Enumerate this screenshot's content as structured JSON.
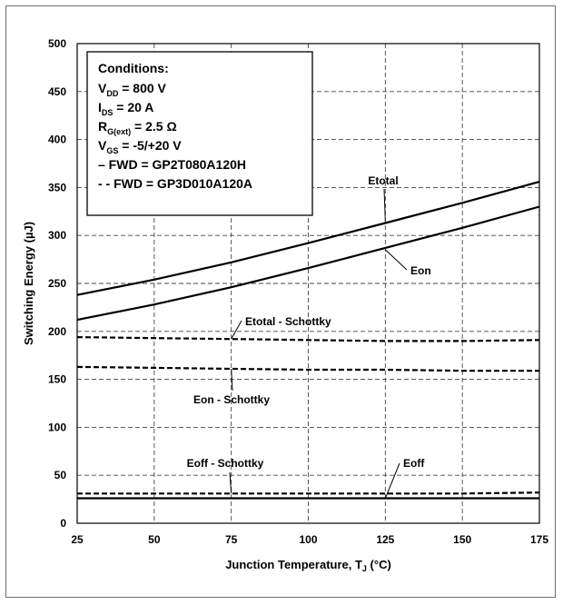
{
  "chart_data": {
    "type": "line",
    "xlabel": "Junction Temperature, T",
    "xlabel_sub": "J",
    "xlabel_unit": " (°C)",
    "ylabel": "Switching Energy (µJ)",
    "xlim": [
      25,
      175
    ],
    "ylim": [
      0,
      500
    ],
    "xticks": [
      "25",
      "50",
      "75",
      "100",
      "125",
      "150",
      "175"
    ],
    "yticks": [
      "0",
      "50",
      "100",
      "150",
      "200",
      "250",
      "300",
      "350",
      "400",
      "450",
      "500"
    ],
    "grid": true,
    "conditions": {
      "title": "Conditions:",
      "lines": [
        {
          "main": "V",
          "sub": "DD",
          "rest": " = 800 V"
        },
        {
          "main": "I",
          "sub": "DS",
          "rest": " = 20 A"
        },
        {
          "main": "R",
          "sub": "G(ext)",
          "rest": " = 2.5 Ω"
        },
        {
          "main": "V",
          "sub": "GS",
          "rest": " = -5/+20 V"
        },
        {
          "main": "– FWD = GP2T080A120H",
          "sub": "",
          "rest": ""
        },
        {
          "main": "- - FWD = GP3D010A120A",
          "sub": "",
          "rest": ""
        }
      ]
    },
    "series": [
      {
        "name": "Etotal",
        "dash": false,
        "x": [
          25,
          50,
          75,
          100,
          125,
          150,
          175
        ],
        "y": [
          238,
          254,
          272,
          292,
          313,
          334,
          356
        ]
      },
      {
        "name": "Eon",
        "dash": false,
        "x": [
          25,
          50,
          75,
          100,
          125,
          150,
          175
        ],
        "y": [
          212,
          228,
          246,
          266,
          287,
          308,
          330
        ]
      },
      {
        "name": "Etotal - Schottky",
        "dash": true,
        "x": [
          25,
          50,
          75,
          100,
          125,
          150,
          175
        ],
        "y": [
          194,
          193,
          192,
          191,
          190,
          190,
          191
        ]
      },
      {
        "name": "Eon - Schottky",
        "dash": true,
        "x": [
          25,
          50,
          75,
          100,
          125,
          150,
          175
        ],
        "y": [
          163,
          162,
          161,
          160,
          160,
          159,
          159
        ]
      },
      {
        "name": "Eoff - Schottky",
        "dash": true,
        "x": [
          25,
          50,
          75,
          100,
          125,
          150,
          175
        ],
        "y": [
          31,
          31,
          31,
          31,
          31,
          31,
          32
        ]
      },
      {
        "name": "Eoff",
        "dash": false,
        "x": [
          25,
          50,
          75,
          100,
          125,
          150,
          175
        ],
        "y": [
          26,
          26,
          26,
          26,
          26,
          26,
          26
        ]
      }
    ],
    "annotations": [
      {
        "text": "Etotal",
        "series": 0
      },
      {
        "text": "Eon",
        "series": 1
      },
      {
        "text": "Etotal - Schottky",
        "series": 2
      },
      {
        "text": "Eon - Schottky",
        "series": 3
      },
      {
        "text": "Eoff - Schottky",
        "series": 4
      },
      {
        "text": "Eoff",
        "series": 5
      }
    ]
  }
}
